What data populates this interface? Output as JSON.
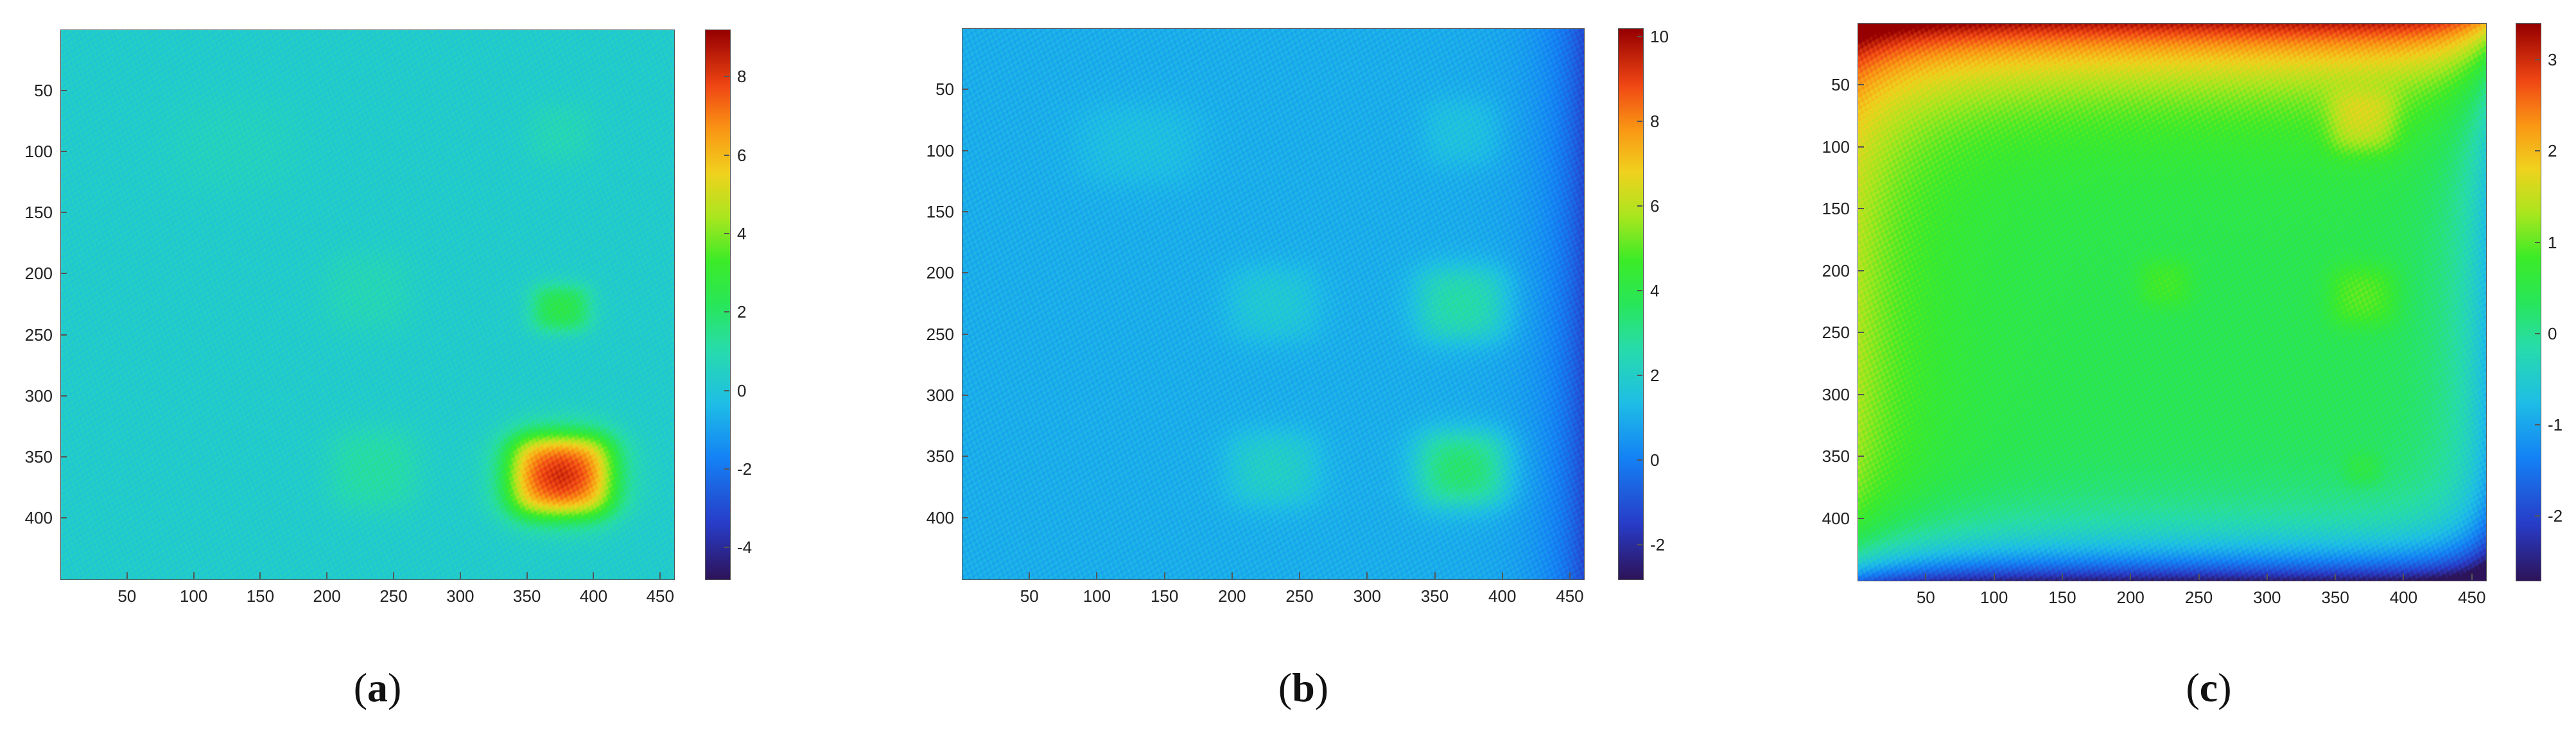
{
  "chart_data": [
    {
      "type": "heatmap",
      "panel_label": "a",
      "x_ticks": [
        50,
        100,
        150,
        200,
        250,
        300,
        350,
        400,
        450
      ],
      "y_ticks": [
        50,
        100,
        150,
        200,
        250,
        300,
        350,
        400
      ],
      "xlim": [
        0,
        460
      ],
      "ylim": [
        0,
        450
      ],
      "y_reversed": true,
      "colorbar": {
        "ticks": [
          8,
          6,
          4,
          2,
          0,
          -2,
          -4
        ],
        "range": [
          -4.8,
          9.2
        ]
      },
      "background_value": 0.3,
      "features": [
        {
          "x": 375,
          "y": 365,
          "w": 70,
          "h": 60,
          "value": 8.6
        },
        {
          "x": 375,
          "y": 228,
          "w": 40,
          "h": 35,
          "value": 2.6
        },
        {
          "x": 235,
          "y": 360,
          "w": 60,
          "h": 60,
          "value": 1.2
        },
        {
          "x": 230,
          "y": 215,
          "w": 60,
          "h": 60,
          "value": 0.8
        },
        {
          "x": 375,
          "y": 85,
          "w": 45,
          "h": 45,
          "value": 0.8
        },
        {
          "x": 130,
          "y": 95,
          "w": 90,
          "h": 70,
          "value": 0.6
        }
      ]
    },
    {
      "type": "heatmap",
      "panel_label": "b",
      "x_ticks": [
        50,
        100,
        150,
        200,
        250,
        300,
        350,
        400,
        450
      ],
      "y_ticks": [
        50,
        100,
        150,
        200,
        250,
        300,
        350,
        400
      ],
      "xlim": [
        0,
        460
      ],
      "ylim": [
        0,
        450
      ],
      "y_reversed": true,
      "colorbar": {
        "ticks": [
          10,
          8,
          6,
          4,
          2,
          0,
          -2
        ],
        "range": [
          -2.8,
          10.2
        ]
      },
      "background_value": 1.0,
      "features": [
        {
          "x": 370,
          "y": 360,
          "w": 60,
          "h": 55,
          "value": 3.6
        },
        {
          "x": 370,
          "y": 225,
          "w": 60,
          "h": 55,
          "value": 2.8
        },
        {
          "x": 230,
          "y": 360,
          "w": 60,
          "h": 55,
          "value": 2.1
        },
        {
          "x": 230,
          "y": 225,
          "w": 60,
          "h": 55,
          "value": 1.8
        },
        {
          "x": 370,
          "y": 85,
          "w": 50,
          "h": 50,
          "value": 1.6
        },
        {
          "x": 130,
          "y": 95,
          "w": 80,
          "h": 60,
          "value": 1.5
        }
      ],
      "right_edge_value": -1.2
    },
    {
      "type": "heatmap",
      "panel_label": "c",
      "x_ticks": [
        50,
        100,
        150,
        200,
        250,
        300,
        350,
        400,
        450
      ],
      "y_ticks": [
        50,
        100,
        150,
        200,
        250,
        300,
        350,
        400
      ],
      "xlim": [
        0,
        460
      ],
      "ylim": [
        0,
        450
      ],
      "y_reversed": true,
      "colorbar": {
        "ticks": [
          3,
          2,
          1,
          0,
          -1,
          -2
        ],
        "range": [
          -2.7,
          3.4
        ]
      },
      "background_value": 0.4,
      "features": [
        {
          "x": 370,
          "y": 80,
          "w": 45,
          "h": 45,
          "value": 1.2
        },
        {
          "x": 370,
          "y": 220,
          "w": 45,
          "h": 45,
          "value": 1.0
        },
        {
          "x": 225,
          "y": 210,
          "w": 35,
          "h": 35,
          "value": 0.8
        },
        {
          "x": 370,
          "y": 360,
          "w": 25,
          "h": 25,
          "value": 0.7
        }
      ],
      "top_edge_value": 3.2,
      "left_edge_value": 1.6,
      "bottom_edge_value": -2.6,
      "right_edge_value": -0.8
    }
  ]
}
